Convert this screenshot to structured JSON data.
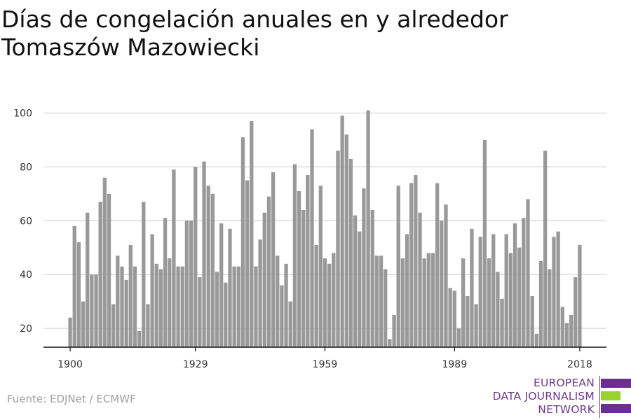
{
  "title": "Días de congelación anuales en y alrededor Tomaszów Mazowiecki",
  "source": "Fuente: EDJNet / ECMWF",
  "logo": {
    "lines": [
      "EUROPEAN",
      "DATA JOURNALISM",
      "NETWORK"
    ],
    "colors": {
      "purple": "#6b2f8f",
      "green": "#9bd12f"
    }
  },
  "colors": {
    "bar": "#999999",
    "grid": "#d9d9d9",
    "axis": "#111111",
    "text": "#333333"
  },
  "chart_data": {
    "type": "bar",
    "x": [
      1900,
      1901,
      1902,
      1903,
      1904,
      1905,
      1906,
      1907,
      1908,
      1909,
      1910,
      1911,
      1912,
      1913,
      1914,
      1915,
      1916,
      1917,
      1918,
      1919,
      1920,
      1921,
      1922,
      1923,
      1924,
      1925,
      1926,
      1927,
      1928,
      1929,
      1930,
      1931,
      1932,
      1933,
      1934,
      1935,
      1936,
      1937,
      1938,
      1939,
      1940,
      1941,
      1942,
      1943,
      1944,
      1945,
      1946,
      1947,
      1948,
      1949,
      1950,
      1951,
      1952,
      1953,
      1954,
      1955,
      1956,
      1957,
      1958,
      1959,
      1960,
      1961,
      1962,
      1963,
      1964,
      1965,
      1966,
      1967,
      1968,
      1969,
      1970,
      1971,
      1972,
      1973,
      1974,
      1975,
      1976,
      1977,
      1978,
      1979,
      1980,
      1981,
      1982,
      1983,
      1984,
      1985,
      1986,
      1987,
      1988,
      1989,
      1990,
      1991,
      1992,
      1993,
      1994,
      1995,
      1996,
      1997,
      1998,
      1999,
      2000,
      2001,
      2002,
      2003,
      2004,
      2005,
      2006,
      2007,
      2008,
      2009,
      2010,
      2011,
      2012,
      2013,
      2014,
      2015,
      2016,
      2017,
      2018
    ],
    "values": [
      24,
      58,
      52,
      30,
      63,
      40,
      40,
      67,
      76,
      70,
      29,
      47,
      43,
      38,
      51,
      43,
      19,
      67,
      29,
      55,
      44,
      42,
      61,
      46,
      79,
      43,
      43,
      60,
      60,
      80,
      39,
      82,
      73,
      70,
      41,
      59,
      37,
      57,
      43,
      43,
      91,
      75,
      97,
      43,
      53,
      63,
      69,
      78,
      47,
      36,
      44,
      30,
      81,
      71,
      64,
      77,
      94,
      51,
      73,
      46,
      44,
      48,
      86,
      99,
      92,
      83,
      62,
      56,
      72,
      101,
      64,
      47,
      47,
      42,
      16,
      25,
      73,
      46,
      55,
      74,
      77,
      63,
      46,
      48,
      48,
      74,
      60,
      66,
      35,
      34,
      20,
      46,
      32,
      57,
      29,
      54,
      90,
      46,
      55,
      41,
      31,
      55,
      48,
      59,
      50,
      61,
      68,
      32,
      18,
      45,
      86,
      42,
      54,
      56,
      28,
      22,
      25,
      39,
      51
    ],
    "xticks": [
      1900,
      1929,
      1959,
      1989,
      2018
    ],
    "yticks": [
      20,
      40,
      60,
      80,
      100
    ],
    "ylim": [
      13,
      103
    ],
    "xlim": [
      1899.5,
      2018.5
    ],
    "xlabel": "",
    "ylabel": "",
    "grid": true
  }
}
